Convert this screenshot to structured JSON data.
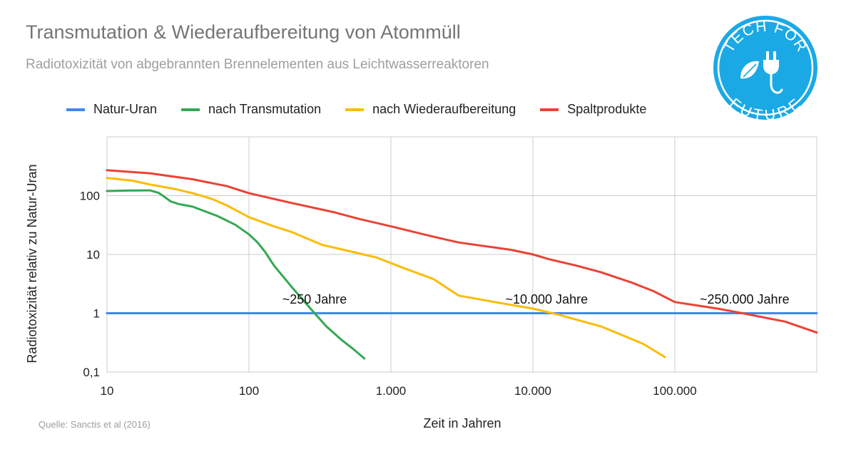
{
  "header": {
    "title": "Transmutation & Wiederaufbereitung von Atommüll",
    "subtitle": "Radiotoxizität von abgebrannten Brennelementen aus Leichtwasserreaktoren"
  },
  "logo": {
    "text_top": "TECH FOR",
    "text_bottom": "FUTURE",
    "color": "#1ba9e6",
    "icon": "plug-leaf-icon"
  },
  "source": "Quelle: Sanctis et al (2016)",
  "chart_data": {
    "type": "line",
    "xlabel": "Zeit in Jahren",
    "ylabel": "Radiotoxizität relativ zu Natur-Uran",
    "xscale": "log",
    "yscale": "log",
    "xlim": [
      10,
      1000000
    ],
    "ylim": [
      0.1,
      1000
    ],
    "grid": true,
    "legend": "top",
    "x_ticks": [
      {
        "value": 10,
        "label": "10"
      },
      {
        "value": 100,
        "label": "100"
      },
      {
        "value": 1000,
        "label": "1.000"
      },
      {
        "value": 10000,
        "label": "10.000"
      },
      {
        "value": 100000,
        "label": "100.000"
      }
    ],
    "y_ticks": [
      {
        "value": 0.1,
        "label": "0,1"
      },
      {
        "value": 1,
        "label": "1"
      },
      {
        "value": 10,
        "label": "10"
      },
      {
        "value": 100,
        "label": "100"
      }
    ],
    "series": [
      {
        "name": "Natur-Uran",
        "color": "#4285f4",
        "points": [
          [
            10,
            1
          ],
          [
            1000000,
            1
          ]
        ]
      },
      {
        "name": "nach Transmutation",
        "color": "#34a853",
        "points": [
          [
            10,
            120
          ],
          [
            14,
            122
          ],
          [
            20,
            123
          ],
          [
            23,
            112
          ],
          [
            25,
            98
          ],
          [
            28,
            80
          ],
          [
            32,
            72
          ],
          [
            40,
            65
          ],
          [
            60,
            45
          ],
          [
            80,
            32
          ],
          [
            100,
            22
          ],
          [
            115,
            16
          ],
          [
            130,
            11
          ],
          [
            150,
            6.5
          ],
          [
            200,
            2.8
          ],
          [
            290,
            1
          ],
          [
            350,
            0.6
          ],
          [
            450,
            0.35
          ],
          [
            550,
            0.24
          ],
          [
            650,
            0.17
          ]
        ]
      },
      {
        "name": "nach Wiederaufbereitung",
        "color": "#fbbc04",
        "points": [
          [
            10,
            200
          ],
          [
            15,
            180
          ],
          [
            20,
            155
          ],
          [
            30,
            130
          ],
          [
            40,
            110
          ],
          [
            55,
            88
          ],
          [
            70,
            68
          ],
          [
            100,
            43
          ],
          [
            150,
            30
          ],
          [
            200,
            24
          ],
          [
            330,
            14.5
          ],
          [
            500,
            11.5
          ],
          [
            800,
            8.8
          ],
          [
            1200,
            6
          ],
          [
            2000,
            3.8
          ],
          [
            3000,
            2
          ],
          [
            5000,
            1.6
          ],
          [
            10000,
            1.2
          ],
          [
            15000,
            0.95
          ],
          [
            30000,
            0.6
          ],
          [
            60000,
            0.3
          ],
          [
            85000,
            0.18
          ]
        ]
      },
      {
        "name": "Spaltprodukte",
        "color": "#ea4335",
        "points": [
          [
            10,
            270
          ],
          [
            20,
            240
          ],
          [
            40,
            190
          ],
          [
            70,
            145
          ],
          [
            100,
            110
          ],
          [
            200,
            75
          ],
          [
            400,
            52
          ],
          [
            600,
            40
          ],
          [
            1000,
            30
          ],
          [
            2000,
            20
          ],
          [
            3000,
            16
          ],
          [
            7000,
            12
          ],
          [
            10000,
            10
          ],
          [
            13000,
            8.3
          ],
          [
            20000,
            6.5
          ],
          [
            30000,
            5
          ],
          [
            50000,
            3.3
          ],
          [
            70000,
            2.4
          ],
          [
            100000,
            1.55
          ],
          [
            200000,
            1.2
          ],
          [
            300000,
            1
          ],
          [
            600000,
            0.72
          ],
          [
            1000000,
            0.47
          ]
        ]
      }
    ],
    "annotations": [
      {
        "text": "~250 Jahre",
        "x": 290,
        "y": 1.45
      },
      {
        "text": "~10.000 Jahre",
        "x": 12500,
        "y": 1.45
      },
      {
        "text": "~250.000 Jahre",
        "x": 310000,
        "y": 1.45
      }
    ]
  }
}
